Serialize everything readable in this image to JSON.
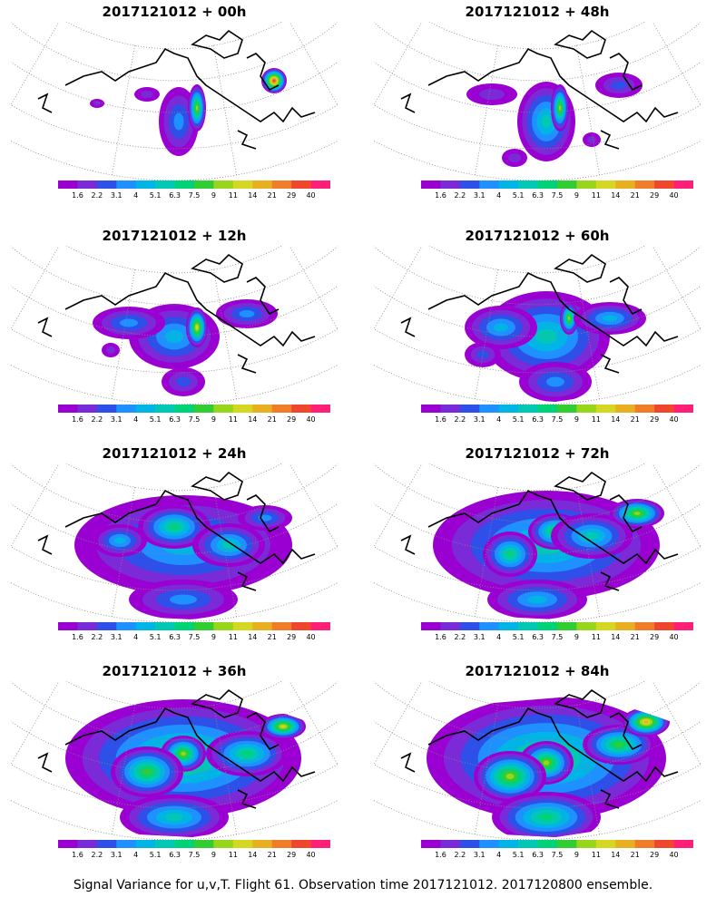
{
  "colorbar": {
    "labels": [
      "1.6",
      "2.2",
      "3.1",
      "4",
      "5.1",
      "6.3",
      "7.5",
      "9",
      "11",
      "14",
      "21",
      "29",
      "40"
    ],
    "colors": [
      "#9b00d2",
      "#7a2ad6",
      "#2e4fe8",
      "#1e90ff",
      "#00b4e6",
      "#00c8b4",
      "#00d278",
      "#32cd32",
      "#9ad51e",
      "#d6d722",
      "#e8b020",
      "#f07d2a",
      "#f0462d",
      "#ff1e78"
    ]
  },
  "panels": [
    {
      "title": "2017121012 + 00h",
      "level": 0
    },
    {
      "title": "2017121012 + 48h",
      "level": 4
    },
    {
      "title": "2017121012 + 12h",
      "level": 1
    },
    {
      "title": "2017121012 + 60h",
      "level": 5
    },
    {
      "title": "2017121012 + 24h",
      "level": 2
    },
    {
      "title": "2017121012 + 72h",
      "level": 6
    },
    {
      "title": "2017121012 + 36h",
      "level": 3
    },
    {
      "title": "2017121012 + 84h",
      "level": 7
    }
  ],
  "footer": "Signal Variance for u,v,T. Flight 61. Observation time 2017121012. 2017120800 ensemble."
}
